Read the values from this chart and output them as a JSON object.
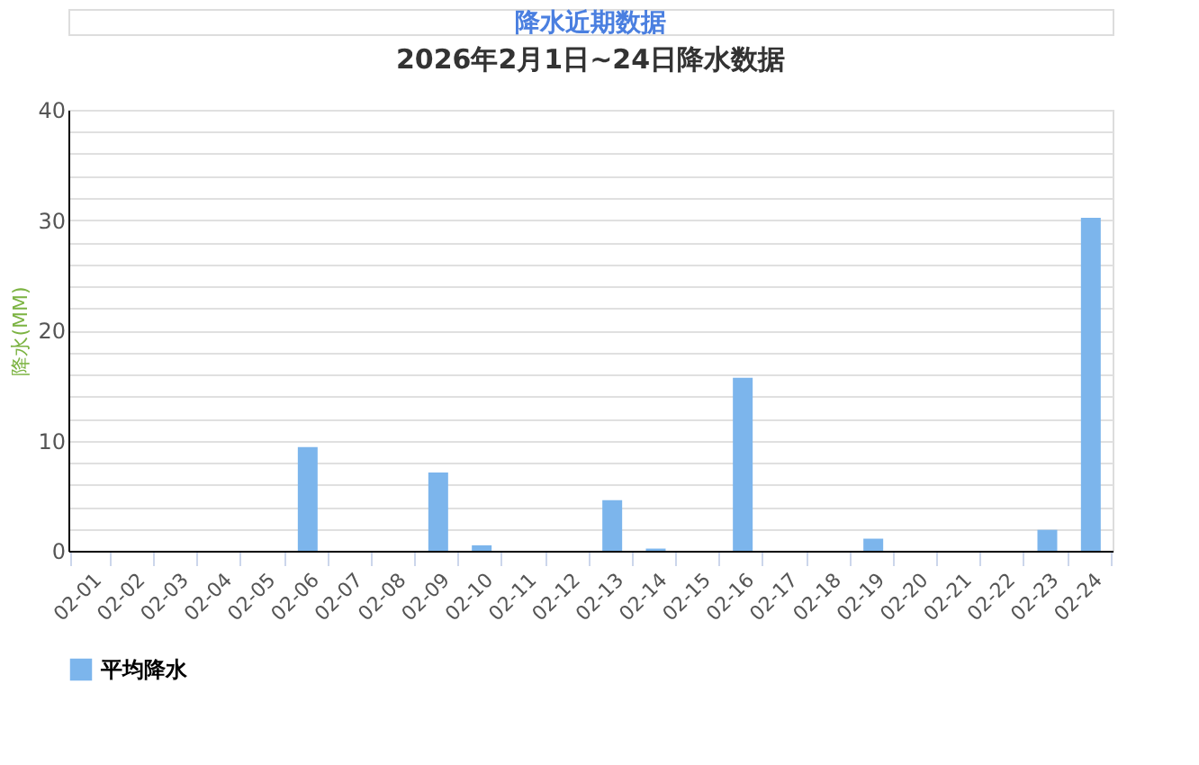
{
  "chart_data": {
    "type": "bar",
    "title": "2026年2月1日~24日降水数据",
    "annotations": [
      "降水近期数据"
    ],
    "ylabel": "降水(MM)",
    "categories": [
      "02-01",
      "02-02",
      "02-03",
      "02-04",
      "02-05",
      "02-06",
      "02-07",
      "02-08",
      "02-09",
      "02-10",
      "02-11",
      "02-12",
      "02-13",
      "02-14",
      "02-15",
      "02-16",
      "02-17",
      "02-18",
      "02-19",
      "02-20",
      "02-21",
      "02-22",
      "02-23",
      "02-24"
    ],
    "series": [
      {
        "name": "平均降水",
        "color": "#7cb5ec",
        "values": [
          0,
          0,
          0,
          0,
          0,
          9.4,
          0,
          0,
          7.1,
          0.5,
          0,
          0,
          4.6,
          0.2,
          0,
          15.7,
          0,
          0,
          1.1,
          0,
          0,
          0,
          1.9,
          30.2
        ]
      }
    ],
    "ylim": [
      0,
      40
    ],
    "yticks": [
      0,
      {
        "value": 2,
        "label": null
      },
      {
        "value": 4,
        "label": null
      },
      {
        "value": 6,
        "label": null
      },
      {
        "value": 8,
        "label": null
      },
      10,
      {
        "value": 12,
        "label": null
      },
      {
        "value": 14,
        "label": null
      },
      {
        "value": 16,
        "label": null
      },
      {
        "value": 18,
        "label": null
      },
      20,
      {
        "value": 22,
        "label": null
      },
      {
        "value": 24,
        "label": null
      },
      {
        "value": 26,
        "label": null
      },
      {
        "value": 28,
        "label": null
      },
      30,
      {
        "value": 32,
        "label": null
      },
      {
        "value": 34,
        "label": null
      },
      {
        "value": 36,
        "label": null
      },
      {
        "value": 38,
        "label": null
      },
      40
    ],
    "grid": "y",
    "legend": "bottom"
  }
}
